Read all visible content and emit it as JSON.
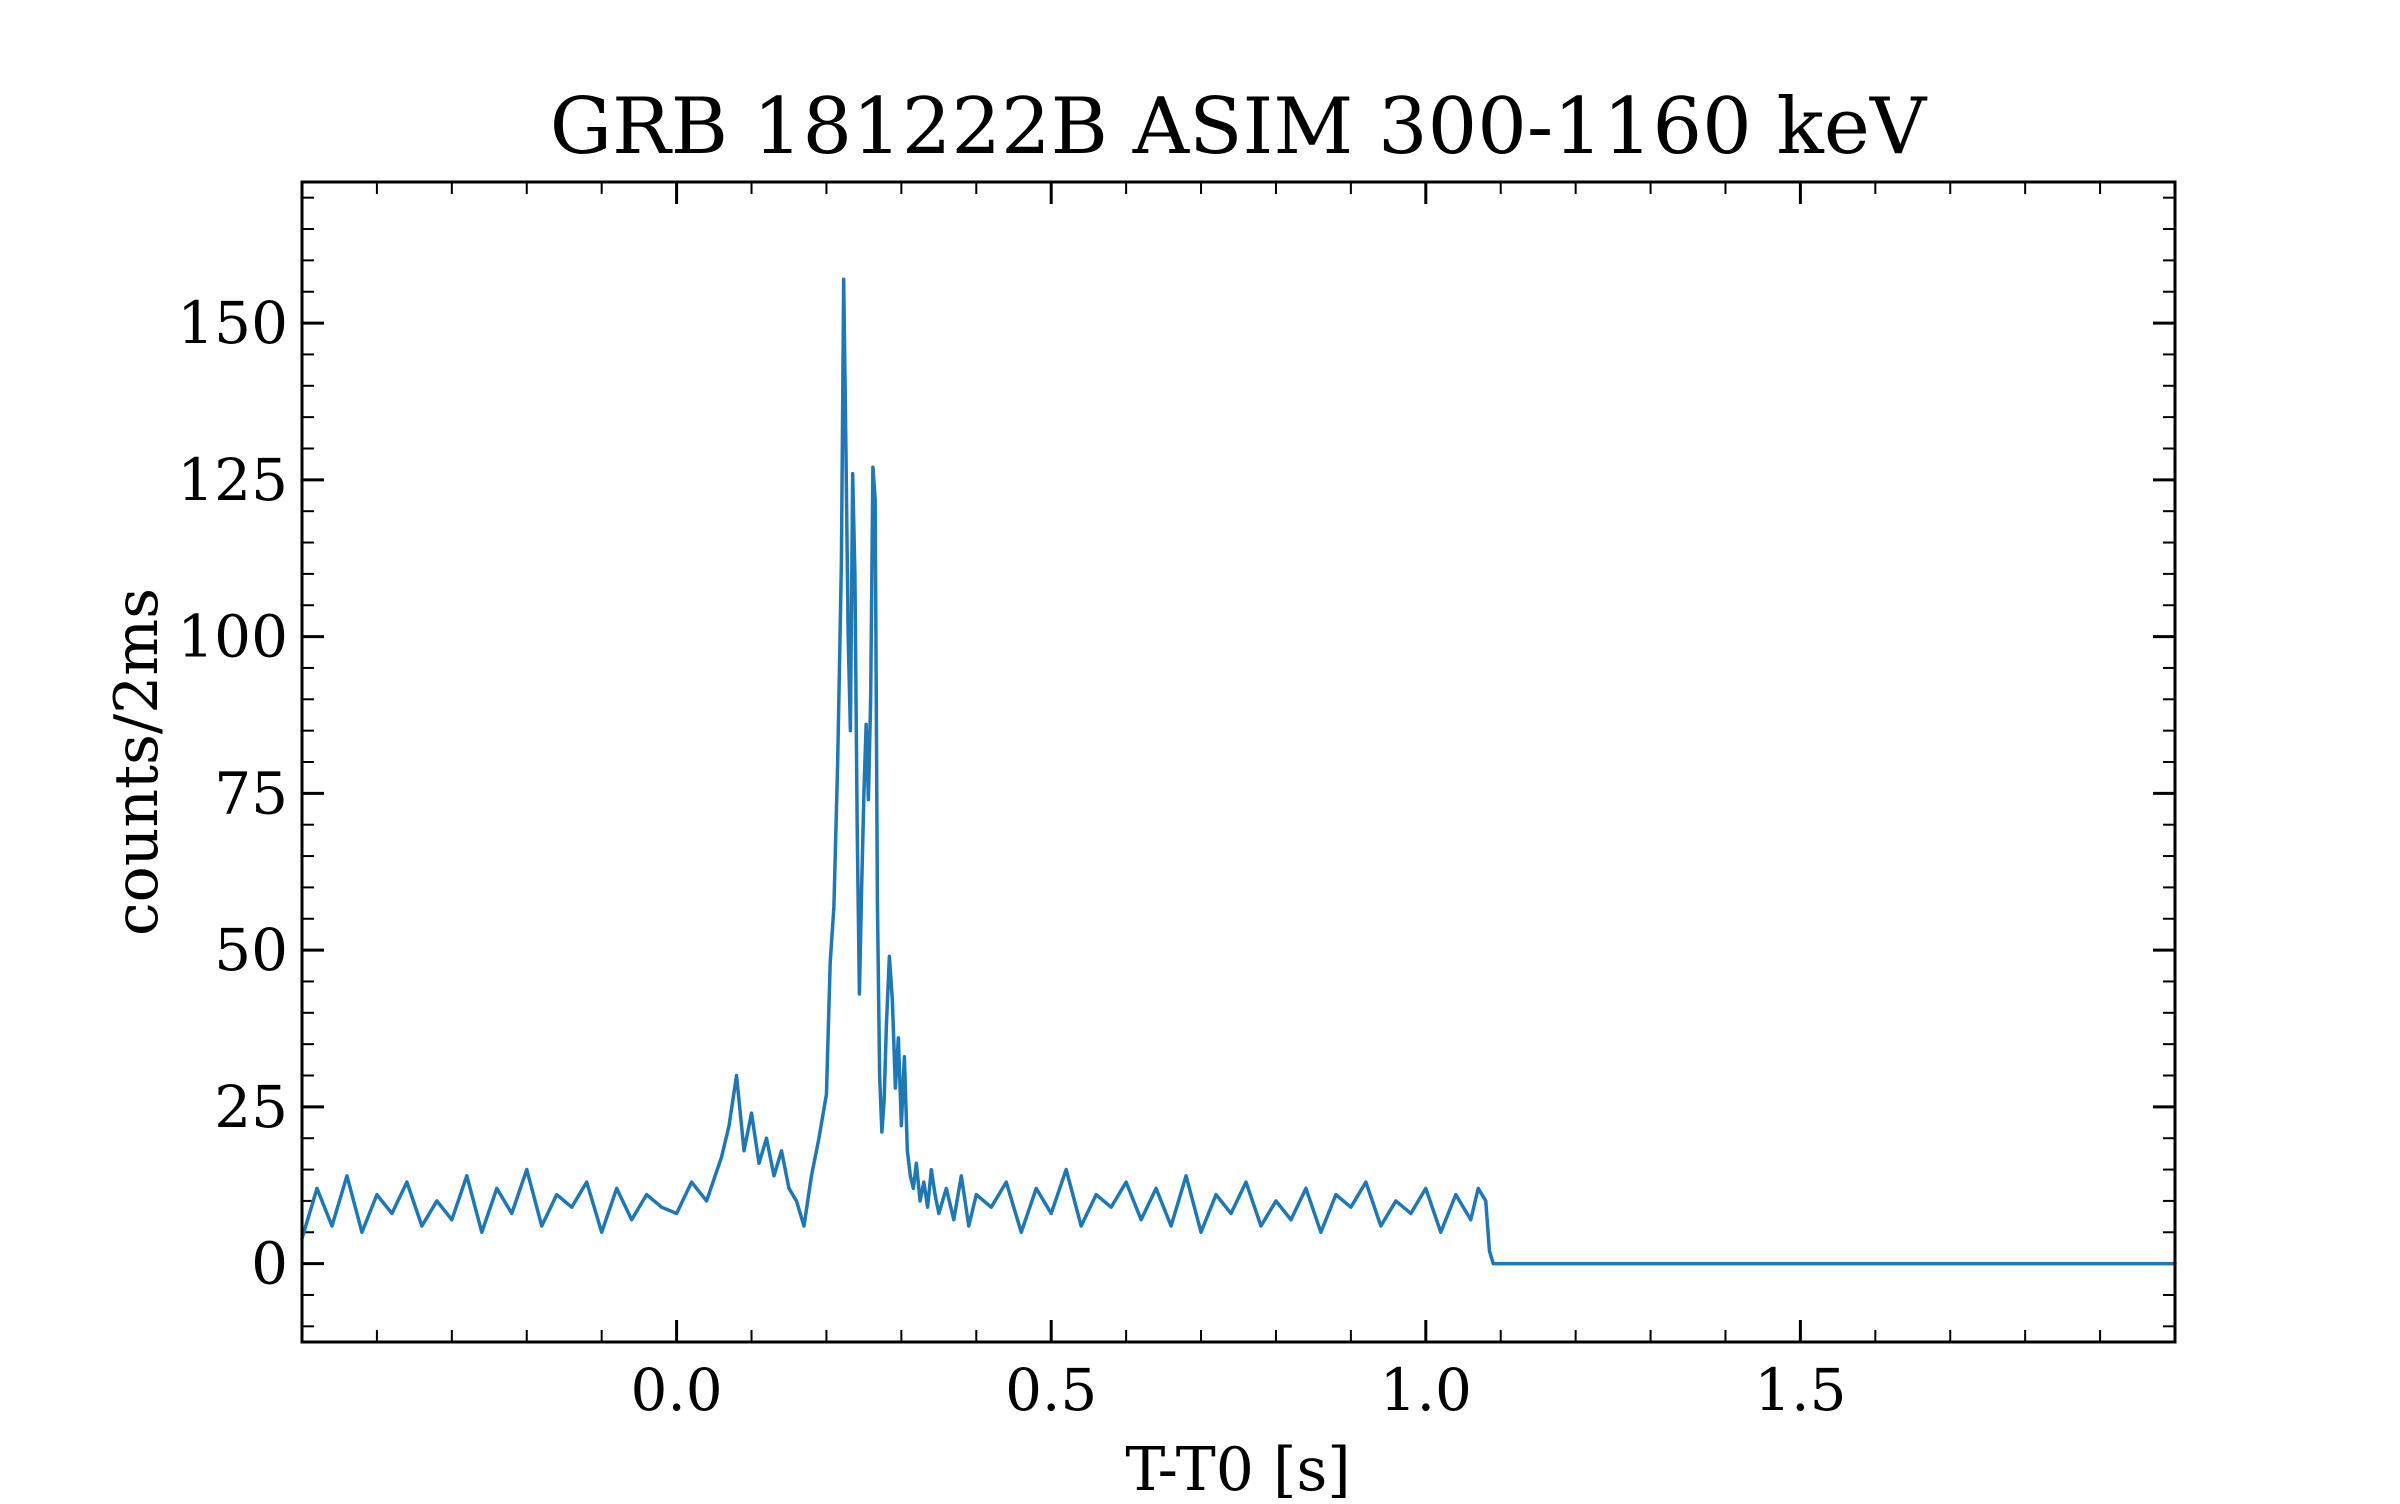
{
  "chart_data": {
    "type": "line",
    "title": "GRB 181222B ASIM 300-1160 keV",
    "xlabel": "T-T0 [s]",
    "ylabel": "counts/2ms",
    "xlim": [
      -0.5,
      2.0
    ],
    "ylim": [
      -12.5,
      172.5
    ],
    "xticks": [
      {
        "value": 0.0,
        "label": "0.0"
      },
      {
        "value": 0.5,
        "label": "0.5"
      },
      {
        "value": 1.0,
        "label": "1.0"
      },
      {
        "value": 1.5,
        "label": "1.5"
      }
    ],
    "yticks": [
      {
        "value": 0,
        "label": "0"
      },
      {
        "value": 25,
        "label": "25"
      },
      {
        "value": 50,
        "label": "50"
      },
      {
        "value": 75,
        "label": "75"
      },
      {
        "value": 100,
        "label": "100"
      },
      {
        "value": 125,
        "label": "125"
      },
      {
        "value": 150,
        "label": "150"
      }
    ],
    "x_minor_step": 0.1,
    "y_minor_step": 5,
    "ticks_direction": "in",
    "ticks_all_sides": true,
    "grid": false,
    "legend": "none",
    "series": [
      {
        "color": "#1f77b4",
        "x": [
          -0.5,
          -0.48,
          -0.46,
          -0.44,
          -0.42,
          -0.4,
          -0.38,
          -0.36,
          -0.34,
          -0.32,
          -0.3,
          -0.28,
          -0.26,
          -0.24,
          -0.22,
          -0.2,
          -0.18,
          -0.16,
          -0.14,
          -0.12,
          -0.1,
          -0.08,
          -0.06,
          -0.04,
          -0.02,
          0.0,
          0.02,
          0.04,
          0.06,
          0.07,
          0.08,
          0.09,
          0.1,
          0.11,
          0.12,
          0.13,
          0.14,
          0.15,
          0.16,
          0.17,
          0.18,
          0.19,
          0.2,
          0.205,
          0.21,
          0.215,
          0.22,
          0.223,
          0.226,
          0.229,
          0.232,
          0.235,
          0.238,
          0.241,
          0.244,
          0.247,
          0.25,
          0.253,
          0.256,
          0.259,
          0.262,
          0.265,
          0.268,
          0.271,
          0.274,
          0.277,
          0.28,
          0.284,
          0.288,
          0.292,
          0.296,
          0.3,
          0.304,
          0.308,
          0.312,
          0.316,
          0.32,
          0.325,
          0.33,
          0.335,
          0.34,
          0.345,
          0.35,
          0.36,
          0.37,
          0.38,
          0.39,
          0.4,
          0.42,
          0.44,
          0.46,
          0.48,
          0.5,
          0.52,
          0.54,
          0.56,
          0.58,
          0.6,
          0.62,
          0.64,
          0.66,
          0.68,
          0.7,
          0.72,
          0.74,
          0.76,
          0.78,
          0.8,
          0.82,
          0.84,
          0.86,
          0.88,
          0.9,
          0.92,
          0.94,
          0.96,
          0.98,
          1.0,
          1.02,
          1.04,
          1.06,
          1.07,
          1.08,
          1.085,
          1.09,
          1.2,
          1.4,
          1.6,
          1.8,
          2.0
        ],
        "values": [
          4,
          12,
          6,
          14,
          5,
          11,
          8,
          13,
          6,
          10,
          7,
          14,
          5,
          12,
          8,
          15,
          6,
          11,
          9,
          13,
          5,
          12,
          7,
          11,
          9,
          8,
          13,
          10,
          17,
          22,
          30,
          18,
          24,
          16,
          20,
          14,
          18,
          12,
          10,
          6,
          14,
          20,
          27,
          48,
          57,
          80,
          112,
          157,
          130,
          100,
          85,
          126,
          110,
          70,
          43,
          60,
          75,
          86,
          74,
          90,
          127,
          122,
          58,
          30,
          21,
          26,
          38,
          49,
          42,
          28,
          36,
          22,
          33,
          18,
          14,
          12,
          16,
          10,
          13,
          9,
          15,
          11,
          8,
          12,
          7,
          14,
          6,
          11,
          9,
          13,
          5,
          12,
          8,
          15,
          6,
          11,
          9,
          13,
          7,
          12,
          6,
          14,
          5,
          11,
          8,
          13,
          6,
          10,
          7,
          12,
          5,
          11,
          9,
          13,
          6,
          10,
          8,
          12,
          5,
          11,
          7,
          12,
          10,
          2,
          0,
          0,
          0,
          0,
          0,
          0
        ]
      }
    ]
  }
}
